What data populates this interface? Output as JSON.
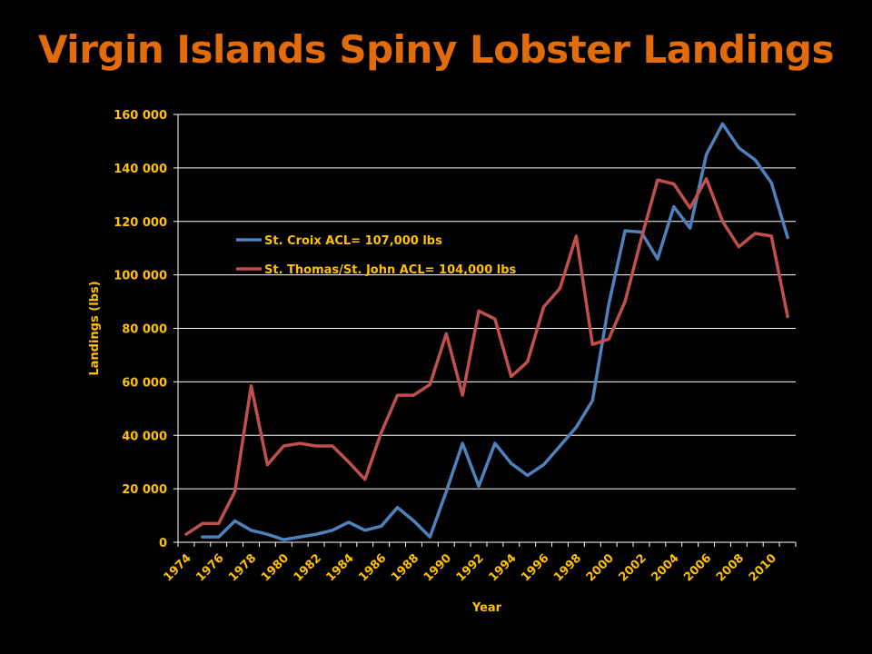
{
  "title": "Virgin Islands Spiny Lobster Landings",
  "chart_data": {
    "type": "line",
    "title": "Virgin Islands Spiny Lobster Landings",
    "xlabel": "Year",
    "ylabel": "Landings (lbs)",
    "ylim": [
      0,
      160000
    ],
    "xlim": [
      1974,
      2011
    ],
    "y_ticks": [
      "0",
      "20 000",
      "40 000",
      "60 000",
      "80 000",
      "100 000",
      "120 000",
      "140 000",
      "160 000"
    ],
    "x_ticks": [
      "1974",
      "1976",
      "1978",
      "1980",
      "1982",
      "1984",
      "1986",
      "1988",
      "1990",
      "1992",
      "1994",
      "1996",
      "1998",
      "2000",
      "2002",
      "2004",
      "2006",
      "2008",
      "2010"
    ],
    "grid": "horizontal",
    "legend_position": "upper-left inside",
    "series": [
      {
        "name": "St. Croix ACL= 107,000 lbs",
        "color": "#4f81bd",
        "x": [
          1975,
          1976,
          1977,
          1978,
          1979,
          1980,
          1981,
          1982,
          1983,
          1984,
          1985,
          1986,
          1987,
          1988,
          1989,
          1990,
          1991,
          1992,
          1993,
          1994,
          1995,
          1996,
          1997,
          1998,
          1999,
          2000,
          2001,
          2002,
          2003,
          2004,
          2005,
          2006,
          2007,
          2008,
          2009,
          2010,
          2011
        ],
        "values": [
          2000,
          2000,
          8000,
          4500,
          3000,
          1000,
          2000,
          3000,
          4500,
          7500,
          4500,
          6000,
          13000,
          8000,
          2000,
          19000,
          37000,
          21000,
          37000,
          29500,
          25000,
          29000,
          36000,
          43000,
          53000,
          89000,
          116500,
          116000,
          106000,
          125500,
          117500,
          145000,
          156500,
          147500,
          143000,
          134500,
          114000
        ]
      },
      {
        "name": "St. Thomas/St. John ACL= 104,000 lbs",
        "color": "#c0504d",
        "x": [
          1974,
          1975,
          1976,
          1977,
          1978,
          1979,
          1980,
          1981,
          1982,
          1983,
          1984,
          1985,
          1986,
          1987,
          1988,
          1989,
          1990,
          1991,
          1992,
          1993,
          1994,
          1995,
          1996,
          1997,
          1998,
          1999,
          2000,
          2001,
          2002,
          2003,
          2004,
          2005,
          2006,
          2007,
          2008,
          2009,
          2010,
          2011
        ],
        "values": [
          3000,
          7000,
          7000,
          19000,
          58500,
          29000,
          36000,
          37000,
          36000,
          36000,
          30000,
          23500,
          41000,
          55000,
          55000,
          59000,
          78000,
          55000,
          86500,
          83500,
          62000,
          67500,
          88000,
          95000,
          114500,
          74000,
          76000,
          90000,
          113500,
          135500,
          134000,
          125000,
          136000,
          120000,
          110500,
          115500,
          114500,
          84500
        ]
      }
    ]
  }
}
